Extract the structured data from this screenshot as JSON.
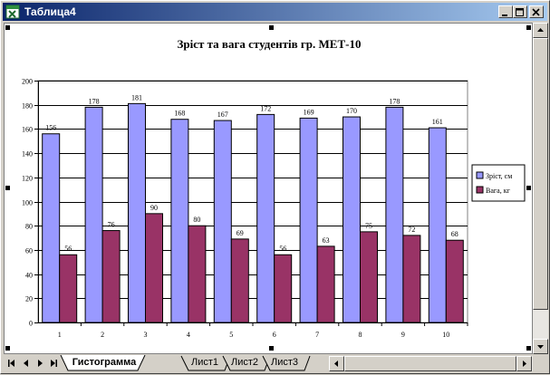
{
  "window": {
    "title": "Таблица4"
  },
  "icons": {
    "app": "excel-chart-icon",
    "minimize": "minimize-icon",
    "maximize": "maximize-icon",
    "close": "close-icon"
  },
  "colors": {
    "titlebar_start": "#0a246a",
    "titlebar_end": "#a6caf0",
    "series_height": "#9999ff",
    "series_weight": "#993366",
    "chart_background": "#ffffff"
  },
  "chart_data": {
    "type": "bar",
    "title": "Зріст та вага студентів гр. МЕТ-10",
    "categories": [
      "1",
      "2",
      "3",
      "4",
      "5",
      "6",
      "7",
      "8",
      "9",
      "10"
    ],
    "series": [
      {
        "name": "Зріст, см",
        "values": [
          156,
          178,
          181,
          168,
          167,
          172,
          169,
          170,
          178,
          161
        ]
      },
      {
        "name": "Вага, кг",
        "values": [
          56,
          76,
          90,
          80,
          69,
          56,
          63,
          75,
          72,
          68
        ]
      }
    ],
    "ylim": [
      0,
      200
    ],
    "yticks": [
      "0",
      "20",
      "40",
      "60",
      "80",
      "100",
      "120",
      "140",
      "160",
      "180",
      "200"
    ],
    "grid": true,
    "legend": "right",
    "data_labels": true
  },
  "sheet_tabs": [
    {
      "label": "Гистограмма",
      "active": true
    },
    {
      "label": "Лист1",
      "active": false
    },
    {
      "label": "Лист2",
      "active": false
    },
    {
      "label": "Лист3",
      "active": false
    }
  ]
}
